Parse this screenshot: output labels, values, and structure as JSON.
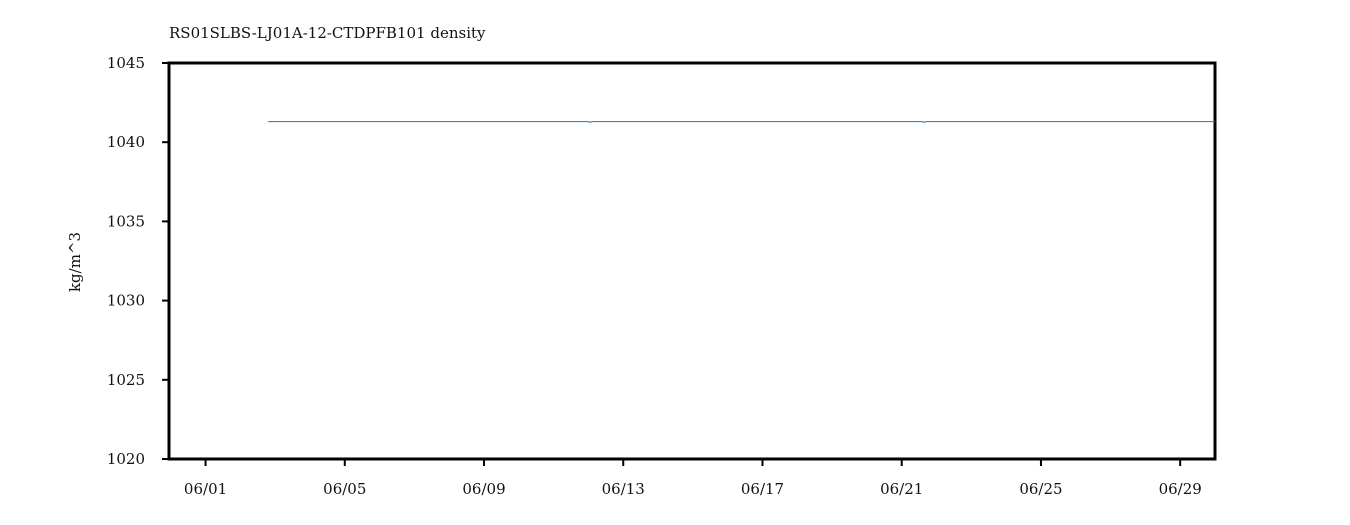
{
  "chart_data": {
    "type": "line",
    "title": "RS01SLBS-LJ01A-12-CTDPFB101 density",
    "xlabel": "",
    "ylabel": "kg/m^3",
    "x_tick_labels": [
      "06/01",
      "06/05",
      "06/09",
      "06/13",
      "06/17",
      "06/21",
      "06/25",
      "06/29"
    ],
    "x_tick_days": [
      1,
      5,
      9,
      13,
      17,
      21,
      25,
      29
    ],
    "xlim_days": [
      -0.05,
      30.0
    ],
    "y_ticks": [
      1020,
      1025,
      1030,
      1035,
      1040,
      1045
    ],
    "ylim": [
      1020,
      1045
    ],
    "grid": false,
    "legend": "none",
    "series": [
      {
        "color": "#1f77b4",
        "x_days": [
          2.8,
          6.0,
          9.0,
          11.0,
          12.0,
          12.05,
          12.1,
          15.0,
          18.0,
          21.0,
          21.6,
          21.65,
          21.7,
          24.0,
          27.0,
          30.0
        ],
        "values": [
          1041.3,
          1041.3,
          1041.3,
          1041.3,
          1041.3,
          1041.25,
          1041.3,
          1041.3,
          1041.3,
          1041.3,
          1041.3,
          1041.25,
          1041.3,
          1041.3,
          1041.3,
          1041.3
        ]
      }
    ]
  }
}
